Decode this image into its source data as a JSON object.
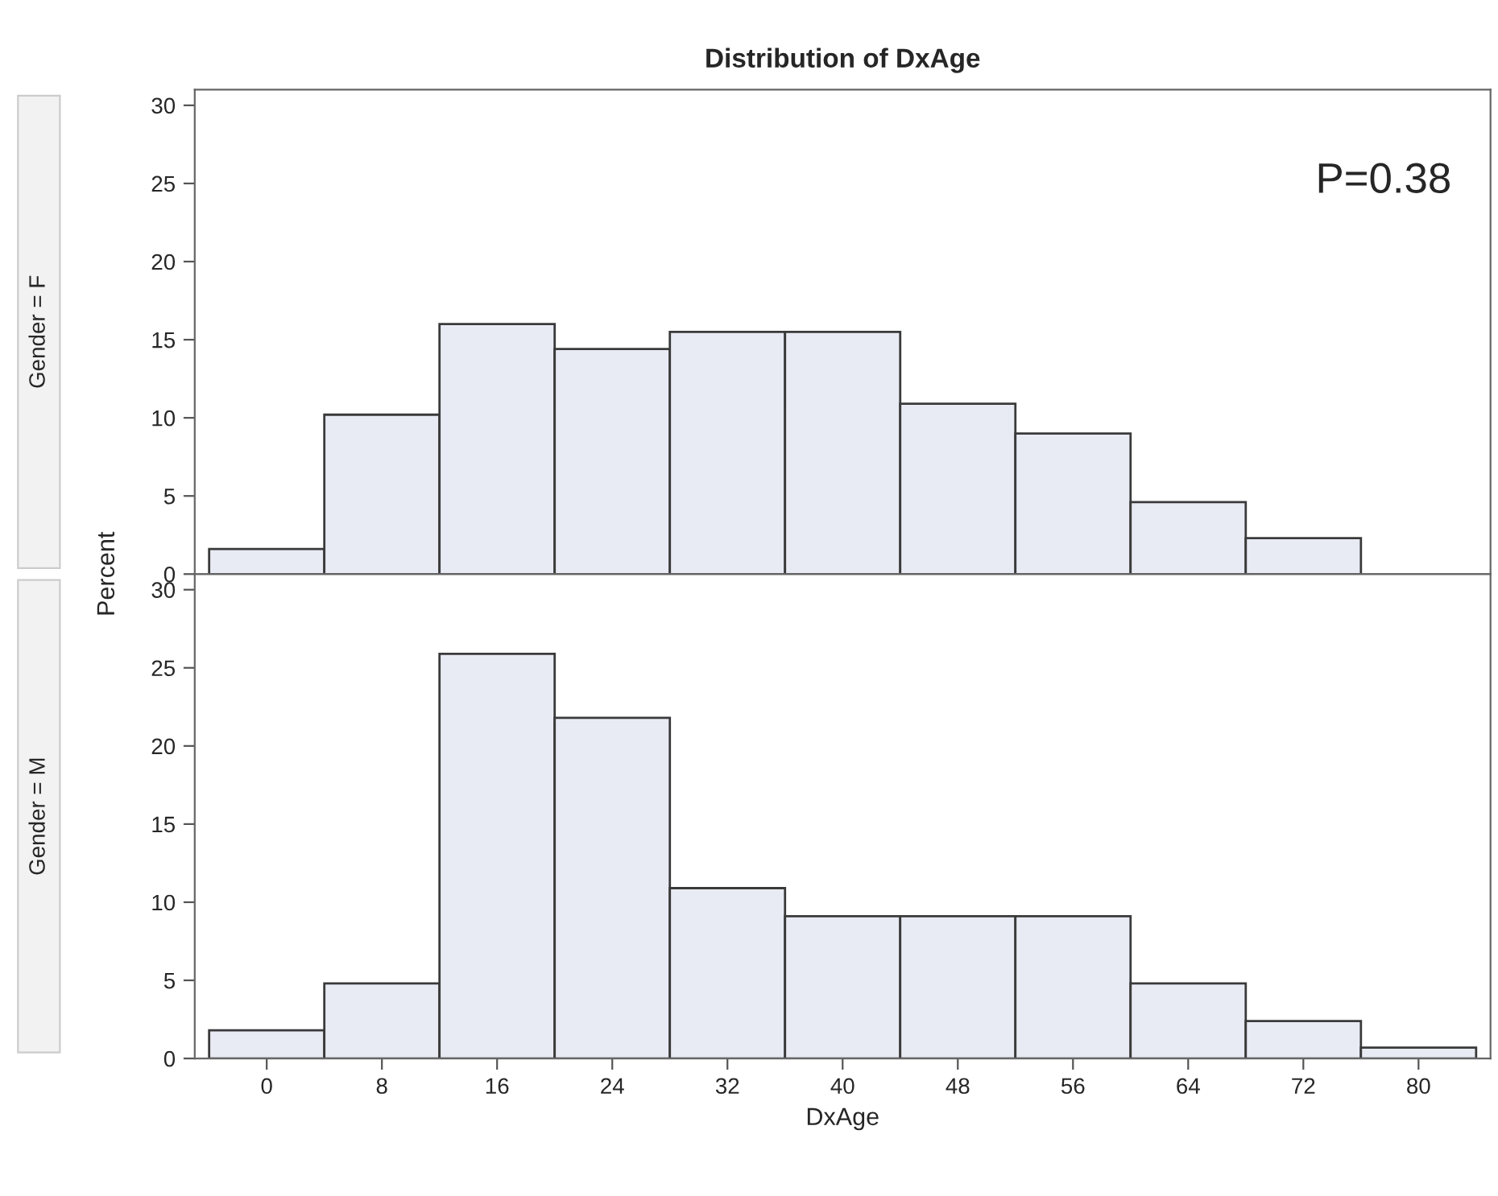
{
  "chart_data": [
    {
      "type": "histogram",
      "title": "Distribution of DxAge",
      "bins": [
        -4,
        4,
        12,
        20,
        28,
        36,
        44,
        52,
        60,
        68,
        76
      ],
      "values": [
        1.6,
        10.2,
        16,
        14.4,
        15.5,
        15.5,
        10.9,
        9,
        4.6,
        2.3
      ],
      "color": "#e8ebf4",
      "xlim": [
        -5,
        85
      ],
      "ylim": [
        0,
        31
      ],
      "yticks": [
        0,
        5,
        10,
        15,
        20,
        25,
        30
      ],
      "tick_labels": "y",
      "annotations": [
        "Gender = F",
        "P=0.38"
      ],
      "grid": false,
      "legend": false
    },
    {
      "type": "histogram",
      "bins": [
        -4,
        4,
        12,
        20,
        28,
        36,
        44,
        52,
        60,
        68,
        76,
        84
      ],
      "values": [
        1.8,
        4.8,
        25.9,
        21.8,
        10.9,
        9.1,
        9.1,
        9.1,
        4.8,
        2.4,
        0.7
      ],
      "color": "#e8ebf4",
      "xlim": [
        -5,
        85
      ],
      "xticks": [
        0,
        8,
        16,
        24,
        32,
        40,
        48,
        56,
        64,
        72,
        80
      ],
      "ylim": [
        0,
        31
      ],
      "yticks": [
        0,
        5,
        10,
        15,
        20,
        25,
        30
      ],
      "xlabel": "DxAge",
      "ylabel": "Percent",
      "annotations": [
        "Gender = M"
      ],
      "grid": false,
      "legend": false
    }
  ]
}
